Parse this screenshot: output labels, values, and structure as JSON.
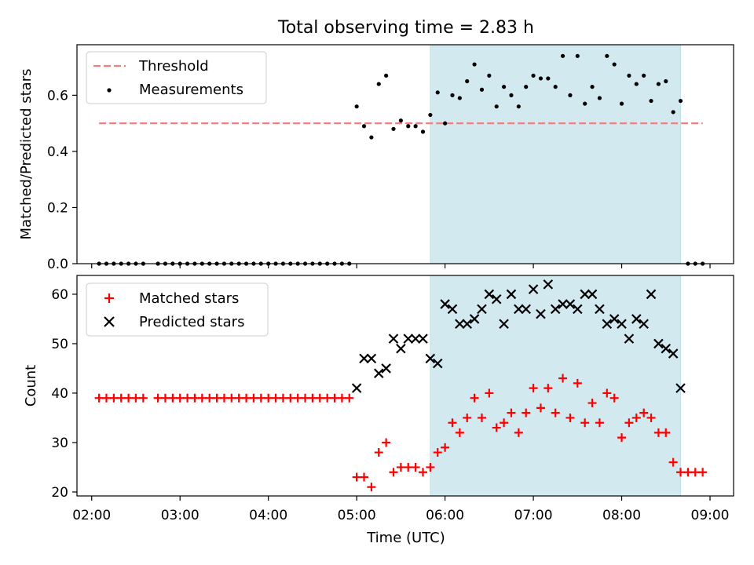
{
  "title": "Total observing time = 2.83 h",
  "chart_data": [
    {
      "type": "scatter",
      "ylabel": "Matched/Predicted stars",
      "ylim": [
        0,
        0.78
      ],
      "yticks": [
        0.0,
        0.2,
        0.4,
        0.6
      ],
      "ytick_labels": [
        "0.0",
        "0.2",
        "0.4",
        "0.6"
      ],
      "xlim": [
        "01:50",
        "09:16"
      ],
      "shaded_interval": [
        "05:50",
        "08:40"
      ],
      "shade_color": "#d2e9f0",
      "legend_position": "upper left",
      "threshold": {
        "name": "Threshold",
        "value": 0.5,
        "x_start": "02:05",
        "x_end": "08:55",
        "color": "#f08080",
        "style": "dashed"
      },
      "series": [
        {
          "name": "Measurements",
          "marker": "dot",
          "color": "#000000",
          "points": [
            [
              "02:05",
              0
            ],
            [
              "02:10",
              0
            ],
            [
              "02:15",
              0
            ],
            [
              "02:20",
              0
            ],
            [
              "02:25",
              0
            ],
            [
              "02:30",
              0
            ],
            [
              "02:35",
              0
            ],
            [
              "02:45",
              0
            ],
            [
              "02:50",
              0
            ],
            [
              "02:55",
              0
            ],
            [
              "03:00",
              0
            ],
            [
              "03:05",
              0
            ],
            [
              "03:10",
              0
            ],
            [
              "03:15",
              0
            ],
            [
              "03:20",
              0
            ],
            [
              "03:25",
              0
            ],
            [
              "03:30",
              0
            ],
            [
              "03:35",
              0
            ],
            [
              "03:40",
              0
            ],
            [
              "03:45",
              0
            ],
            [
              "03:50",
              0
            ],
            [
              "03:55",
              0
            ],
            [
              "04:00",
              0
            ],
            [
              "04:05",
              0
            ],
            [
              "04:10",
              0
            ],
            [
              "04:15",
              0
            ],
            [
              "04:20",
              0
            ],
            [
              "04:25",
              0
            ],
            [
              "04:30",
              0
            ],
            [
              "04:35",
              0
            ],
            [
              "04:40",
              0
            ],
            [
              "04:45",
              0
            ],
            [
              "04:50",
              0
            ],
            [
              "04:55",
              0
            ],
            [
              "05:00",
              0.56
            ],
            [
              "05:05",
              0.49
            ],
            [
              "05:10",
              0.45
            ],
            [
              "05:15",
              0.64
            ],
            [
              "05:20",
              0.67
            ],
            [
              "05:25",
              0.48
            ],
            [
              "05:30",
              0.51
            ],
            [
              "05:35",
              0.49
            ],
            [
              "05:40",
              0.49
            ],
            [
              "05:45",
              0.47
            ],
            [
              "05:50",
              0.53
            ],
            [
              "05:55",
              0.61
            ],
            [
              "06:00",
              0.5
            ],
            [
              "06:05",
              0.6
            ],
            [
              "06:10",
              0.59
            ],
            [
              "06:15",
              0.65
            ],
            [
              "06:20",
              0.71
            ],
            [
              "06:25",
              0.62
            ],
            [
              "06:30",
              0.67
            ],
            [
              "06:35",
              0.56
            ],
            [
              "06:40",
              0.63
            ],
            [
              "06:45",
              0.6
            ],
            [
              "06:50",
              0.56
            ],
            [
              "06:55",
              0.63
            ],
            [
              "07:00",
              0.67
            ],
            [
              "07:05",
              0.66
            ],
            [
              "07:10",
              0.66
            ],
            [
              "07:15",
              0.63
            ],
            [
              "07:20",
              0.74
            ],
            [
              "07:25",
              0.6
            ],
            [
              "07:30",
              0.74
            ],
            [
              "07:35",
              0.57
            ],
            [
              "07:40",
              0.63
            ],
            [
              "07:45",
              0.59
            ],
            [
              "07:50",
              0.74
            ],
            [
              "07:55",
              0.71
            ],
            [
              "08:00",
              0.57
            ],
            [
              "08:05",
              0.67
            ],
            [
              "08:10",
              0.64
            ],
            [
              "08:15",
              0.67
            ],
            [
              "08:20",
              0.58
            ],
            [
              "08:25",
              0.64
            ],
            [
              "08:30",
              0.65
            ],
            [
              "08:35",
              0.54
            ],
            [
              "08:40",
              0.58
            ],
            [
              "08:45",
              0
            ],
            [
              "08:50",
              0
            ],
            [
              "08:55",
              0
            ]
          ]
        }
      ]
    },
    {
      "type": "scatter",
      "ylabel": "Count",
      "xlabel": "Time (UTC)",
      "ylim": [
        19.2,
        63.8
      ],
      "yticks": [
        20,
        30,
        40,
        50,
        60
      ],
      "ytick_labels": [
        "20",
        "30",
        "40",
        "50",
        "60"
      ],
      "xlim": [
        "01:50",
        "09:16"
      ],
      "xticks": [
        "02:00",
        "03:00",
        "04:00",
        "05:00",
        "06:00",
        "07:00",
        "08:00",
        "09:00"
      ],
      "xtick_labels": [
        "02:00",
        "03:00",
        "04:00",
        "05:00",
        "06:00",
        "07:00",
        "08:00",
        "09:00"
      ],
      "shaded_interval": [
        "05:50",
        "08:40"
      ],
      "shade_color": "#d2e9f0",
      "legend_position": "upper left",
      "series": [
        {
          "name": "Matched stars",
          "marker": "plus",
          "color": "#ff0000",
          "points": [
            [
              "02:05",
              39
            ],
            [
              "02:10",
              39
            ],
            [
              "02:15",
              39
            ],
            [
              "02:20",
              39
            ],
            [
              "02:25",
              39
            ],
            [
              "02:30",
              39
            ],
            [
              "02:35",
              39
            ],
            [
              "02:45",
              39
            ],
            [
              "02:50",
              39
            ],
            [
              "02:55",
              39
            ],
            [
              "03:00",
              39
            ],
            [
              "03:05",
              39
            ],
            [
              "03:10",
              39
            ],
            [
              "03:15",
              39
            ],
            [
              "03:20",
              39
            ],
            [
              "03:25",
              39
            ],
            [
              "03:30",
              39
            ],
            [
              "03:35",
              39
            ],
            [
              "03:40",
              39
            ],
            [
              "03:45",
              39
            ],
            [
              "03:50",
              39
            ],
            [
              "03:55",
              39
            ],
            [
              "04:00",
              39
            ],
            [
              "04:05",
              39
            ],
            [
              "04:10",
              39
            ],
            [
              "04:15",
              39
            ],
            [
              "04:20",
              39
            ],
            [
              "04:25",
              39
            ],
            [
              "04:30",
              39
            ],
            [
              "04:35",
              39
            ],
            [
              "04:40",
              39
            ],
            [
              "04:45",
              39
            ],
            [
              "04:50",
              39
            ],
            [
              "04:55",
              39
            ],
            [
              "05:00",
              23
            ],
            [
              "05:05",
              23
            ],
            [
              "05:10",
              21
            ],
            [
              "05:15",
              28
            ],
            [
              "05:20",
              30
            ],
            [
              "05:25",
              24
            ],
            [
              "05:30",
              25
            ],
            [
              "05:35",
              25
            ],
            [
              "05:40",
              25
            ],
            [
              "05:45",
              24
            ],
            [
              "05:50",
              25
            ],
            [
              "05:55",
              28
            ],
            [
              "06:00",
              29
            ],
            [
              "06:05",
              34
            ],
            [
              "06:10",
              32
            ],
            [
              "06:15",
              35
            ],
            [
              "06:20",
              39
            ],
            [
              "06:25",
              35
            ],
            [
              "06:30",
              40
            ],
            [
              "06:35",
              33
            ],
            [
              "06:40",
              34
            ],
            [
              "06:45",
              36
            ],
            [
              "06:50",
              32
            ],
            [
              "06:55",
              36
            ],
            [
              "07:00",
              41
            ],
            [
              "07:05",
              37
            ],
            [
              "07:10",
              41
            ],
            [
              "07:15",
              36
            ],
            [
              "07:20",
              43
            ],
            [
              "07:25",
              35
            ],
            [
              "07:30",
              42
            ],
            [
              "07:35",
              34
            ],
            [
              "07:40",
              38
            ],
            [
              "07:45",
              34
            ],
            [
              "07:50",
              40
            ],
            [
              "07:55",
              39
            ],
            [
              "08:00",
              31
            ],
            [
              "08:05",
              34
            ],
            [
              "08:10",
              35
            ],
            [
              "08:15",
              36
            ],
            [
              "08:20",
              35
            ],
            [
              "08:25",
              32
            ],
            [
              "08:30",
              32
            ],
            [
              "08:35",
              26
            ],
            [
              "08:40",
              24
            ],
            [
              "08:45",
              24
            ],
            [
              "08:50",
              24
            ],
            [
              "08:55",
              24
            ]
          ]
        },
        {
          "name": "Predicted stars",
          "marker": "x",
          "color": "#000000",
          "points": [
            [
              "05:00",
              41
            ],
            [
              "05:05",
              47
            ],
            [
              "05:10",
              47
            ],
            [
              "05:15",
              44
            ],
            [
              "05:20",
              45
            ],
            [
              "05:25",
              51
            ],
            [
              "05:30",
              49
            ],
            [
              "05:35",
              51
            ],
            [
              "05:40",
              51
            ],
            [
              "05:45",
              51
            ],
            [
              "05:50",
              47
            ],
            [
              "05:55",
              46
            ],
            [
              "06:00",
              58
            ],
            [
              "06:05",
              57
            ],
            [
              "06:10",
              54
            ],
            [
              "06:15",
              54
            ],
            [
              "06:20",
              55
            ],
            [
              "06:25",
              57
            ],
            [
              "06:30",
              60
            ],
            [
              "06:35",
              59
            ],
            [
              "06:40",
              54
            ],
            [
              "06:45",
              60
            ],
            [
              "06:50",
              57
            ],
            [
              "06:55",
              57
            ],
            [
              "07:00",
              61
            ],
            [
              "07:05",
              56
            ],
            [
              "07:10",
              62
            ],
            [
              "07:15",
              57
            ],
            [
              "07:20",
              58
            ],
            [
              "07:25",
              58
            ],
            [
              "07:30",
              57
            ],
            [
              "07:35",
              60
            ],
            [
              "07:40",
              60
            ],
            [
              "07:45",
              57
            ],
            [
              "07:50",
              54
            ],
            [
              "07:55",
              55
            ],
            [
              "08:00",
              54
            ],
            [
              "08:05",
              51
            ],
            [
              "08:10",
              55
            ],
            [
              "08:15",
              54
            ],
            [
              "08:20",
              60
            ],
            [
              "08:25",
              50
            ],
            [
              "08:30",
              49
            ],
            [
              "08:35",
              48
            ],
            [
              "08:40",
              41
            ]
          ]
        }
      ]
    }
  ]
}
